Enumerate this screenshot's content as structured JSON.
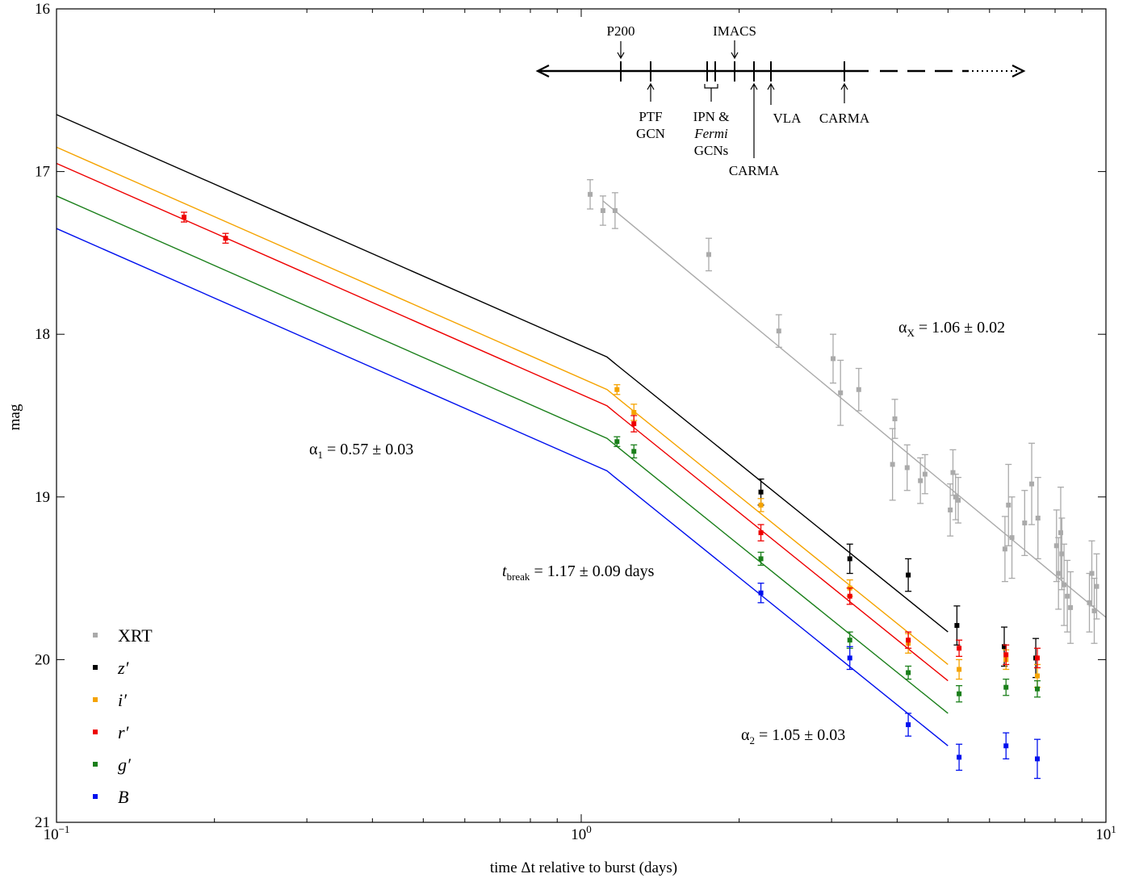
{
  "chart_data": {
    "type": "scatter",
    "xlabel": "time Δt relative to burst (days)",
    "ylabel": "mag",
    "xscale": "log",
    "xlim": [
      0.1,
      10
    ],
    "ylim": [
      21,
      16
    ],
    "x_tick_labels": [
      {
        "value": 0.1,
        "base": "10",
        "exp": "−1"
      },
      {
        "value": 1,
        "base": "10",
        "exp": "0"
      },
      {
        "value": 10,
        "base": "10",
        "exp": "1"
      }
    ],
    "y_ticks": [
      16,
      17,
      18,
      19,
      20,
      21
    ],
    "legend_position": "bottom-left",
    "series": [
      {
        "name": "XRT",
        "label_style": "upright",
        "color": "#aaaaaa",
        "x": [
          1.04,
          1.1,
          1.16,
          1.75,
          2.38,
          3.02,
          3.12,
          3.38,
          3.92,
          3.96,
          4.18,
          4.43,
          4.52,
          5.05,
          5.11,
          5.17,
          5.23,
          6.42,
          6.52,
          6.62,
          7.0,
          7.22,
          7.42,
          8.05,
          8.12,
          8.2,
          8.24,
          8.32,
          8.44,
          8.56,
          9.3,
          9.4,
          9.5,
          9.6
        ],
        "y": [
          17.14,
          17.24,
          17.24,
          17.51,
          17.98,
          18.15,
          18.36,
          18.34,
          18.8,
          18.52,
          18.82,
          18.9,
          18.86,
          19.08,
          18.85,
          19.0,
          19.02,
          19.32,
          19.05,
          19.25,
          19.16,
          18.92,
          19.13,
          19.3,
          19.47,
          19.22,
          19.35,
          19.54,
          19.61,
          19.68,
          19.65,
          19.47,
          19.7,
          19.55
        ],
        "yerr": [
          0.09,
          0.09,
          0.11,
          0.1,
          0.1,
          0.15,
          0.2,
          0.13,
          0.22,
          0.12,
          0.14,
          0.14,
          0.12,
          0.16,
          0.14,
          0.14,
          0.14,
          0.2,
          0.25,
          0.25,
          0.2,
          0.25,
          0.25,
          0.22,
          0.22,
          0.28,
          0.22,
          0.25,
          0.22,
          0.22,
          0.18,
          0.2,
          0.2,
          0.2
        ]
      },
      {
        "name": "z′",
        "label_style": "italic",
        "color": "#000000",
        "x": [
          2.2,
          3.25,
          4.2,
          5.2,
          6.4,
          7.35
        ],
        "y": [
          18.97,
          19.38,
          19.48,
          19.79,
          19.92,
          19.99
        ],
        "yerr": [
          0.08,
          0.09,
          0.1,
          0.12,
          0.12,
          0.12
        ]
      },
      {
        "name": "i′",
        "label_style": "italic",
        "color": "#f5a300",
        "x": [
          1.17,
          1.26,
          2.2,
          3.25,
          4.2,
          5.25,
          6.45,
          7.4
        ],
        "y": [
          18.34,
          18.48,
          19.05,
          19.56,
          19.9,
          20.06,
          20.0,
          20.1
        ],
        "yerr": [
          0.03,
          0.05,
          0.04,
          0.05,
          0.06,
          0.06,
          0.06,
          0.07
        ]
      },
      {
        "name": "r′",
        "label_style": "italic",
        "color": "#ee0000",
        "x": [
          0.175,
          0.21,
          1.26,
          2.2,
          3.25,
          4.2,
          5.25,
          6.45,
          7.4
        ],
        "y": [
          17.28,
          17.41,
          18.55,
          19.22,
          19.61,
          19.88,
          19.93,
          19.97,
          19.99
        ],
        "yerr": [
          0.03,
          0.03,
          0.05,
          0.05,
          0.05,
          0.05,
          0.05,
          0.06,
          0.06
        ]
      },
      {
        "name": "g′",
        "label_style": "italic",
        "color": "#1a7f1a",
        "x": [
          1.17,
          1.26,
          2.2,
          3.25,
          4.2,
          5.25,
          6.45,
          7.4
        ],
        "y": [
          18.66,
          18.72,
          19.38,
          19.88,
          20.08,
          20.21,
          20.17,
          20.18
        ],
        "yerr": [
          0.03,
          0.04,
          0.04,
          0.05,
          0.04,
          0.05,
          0.05,
          0.05
        ]
      },
      {
        "name": "B",
        "label_style": "italic",
        "color": "#0010ee",
        "x": [
          2.2,
          3.25,
          4.2,
          5.25,
          6.45,
          7.4
        ],
        "y": [
          19.59,
          19.99,
          20.4,
          20.6,
          20.53,
          20.61
        ],
        "yerr": [
          0.06,
          0.07,
          0.07,
          0.08,
          0.08,
          0.12
        ]
      }
    ],
    "fits": [
      {
        "name": "z′",
        "color": "#000000",
        "x": [
          0.1,
          1.12,
          1.17,
          5.0
        ],
        "y": [
          16.65,
          18.14,
          18.19,
          19.83
        ]
      },
      {
        "name": "i′",
        "color": "#f5a300",
        "x": [
          0.1,
          1.12,
          1.17,
          5.0
        ],
        "y": [
          16.85,
          18.34,
          18.39,
          20.03
        ]
      },
      {
        "name": "r′",
        "color": "#ee0000",
        "x": [
          0.1,
          1.12,
          1.17,
          5.0
        ],
        "y": [
          16.95,
          18.44,
          18.49,
          20.13
        ]
      },
      {
        "name": "g′",
        "color": "#1a7f1a",
        "x": [
          0.1,
          1.12,
          1.17,
          5.0
        ],
        "y": [
          17.15,
          18.64,
          18.69,
          20.33
        ]
      },
      {
        "name": "B",
        "color": "#0010ee",
        "x": [
          0.1,
          1.12,
          1.17,
          5.0
        ],
        "y": [
          17.35,
          18.84,
          18.89,
          20.53
        ]
      },
      {
        "name": "XRT",
        "color": "#aaaaaa",
        "x": [
          1.1,
          10.0
        ],
        "y": [
          17.18,
          19.74
        ]
      }
    ],
    "annotations": {
      "alpha1": {
        "sym": "α",
        "sub": "1",
        "rest": " = 0.57 ± 0.03"
      },
      "alpha2": {
        "sym": "α",
        "sub": "2",
        "rest": " = 1.05 ± 0.03"
      },
      "alphaX": {
        "sym": "α",
        "sub": "X",
        "rest": " = 1.06 ± 0.02"
      },
      "tbreak": {
        "sym": "t",
        "sub": "break",
        "rest": " = 1.17 ± 0.09 days"
      }
    },
    "timeline": {
      "above": [
        "P200",
        "IMACS"
      ],
      "below_ptf": [
        "PTF",
        "GCN"
      ],
      "below_ipn": [
        "IPN &",
        "Fermi",
        "GCNs"
      ],
      "below_carma1": "CARMA",
      "below_vla": "VLA",
      "below_carma2": "CARMA"
    }
  }
}
